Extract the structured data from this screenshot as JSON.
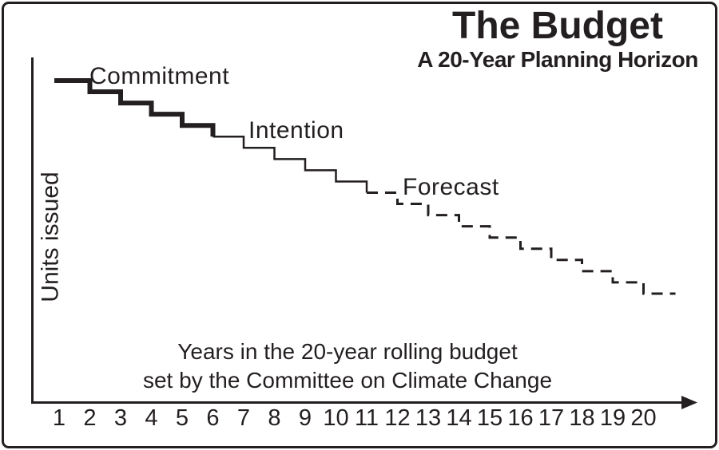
{
  "frame": {
    "ink_color": "#231f20",
    "background": "#ffffff"
  },
  "header": {
    "title": "The Budget",
    "subtitle": "A 20-Year Planning Horizon"
  },
  "axes": {
    "y_label": "Units issued",
    "x_caption_line1": "Years in the 20-year rolling budget",
    "x_caption_line2": "set by the Committee on Climate Change"
  },
  "chart_data": {
    "type": "line",
    "variant": "step-after",
    "title": "The Budget",
    "subtitle": "A 20-Year Planning Horizon",
    "xlabel": "Years in the 20-year rolling budget set by the Committee on Climate Change",
    "ylabel": "Units issued",
    "grid": false,
    "legend_position": "inline-annotations",
    "x": [
      1,
      2,
      3,
      4,
      5,
      6,
      7,
      8,
      9,
      10,
      11,
      12,
      13,
      14,
      15,
      16,
      17,
      18,
      19,
      20
    ],
    "x_range": [
      1,
      20
    ],
    "y_axis_scale_shown": false,
    "y_units_relative": "budget steps down one unit per year",
    "series": [
      {
        "name": "Commitment",
        "style": "solid",
        "thickness": "thick",
        "years": [
          1,
          2,
          3,
          4,
          5,
          6
        ],
        "values": [
          20,
          19,
          18,
          17,
          16,
          15
        ]
      },
      {
        "name": "Intention",
        "style": "solid",
        "thickness": "thin",
        "years": [
          6,
          7,
          8,
          9,
          10,
          11
        ],
        "values": [
          15,
          14,
          13,
          12,
          11,
          10
        ]
      },
      {
        "name": "Forecast",
        "style": "dashed",
        "thickness": "thin",
        "years": [
          11,
          12,
          13,
          14,
          15,
          16,
          17,
          18,
          19,
          20
        ],
        "values": [
          10,
          9,
          8,
          7,
          6,
          5,
          4,
          3,
          2,
          1
        ],
        "extends_past_final_year": true
      }
    ]
  }
}
